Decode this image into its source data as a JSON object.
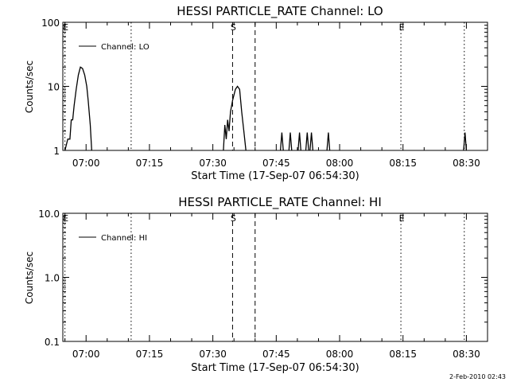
{
  "footer": {
    "date_stamp": "2-Feb-2010 02:43"
  },
  "chart_data": [
    {
      "type": "line",
      "title": "HESSI PARTICLE_RATE Channel: LO",
      "xlabel": "Start Time (17-Sep-07 06:54:30)",
      "ylabel": "Counts/sec",
      "yscale": "log",
      "ylim": [
        1,
        100
      ],
      "y_ticks": [
        "1",
        "10",
        "100"
      ],
      "xlim": [
        "06:54:30",
        "08:35:00"
      ],
      "x_ticks": [
        {
          "t": "07:00:00",
          "label": "07:00"
        },
        {
          "t": "07:15:00",
          "label": "07:15"
        },
        {
          "t": "07:30:00",
          "label": "07:30"
        },
        {
          "t": "07:45:00",
          "label": "07:45"
        },
        {
          "t": "08:00:00",
          "label": "08:00"
        },
        {
          "t": "08:15:00",
          "label": "08:15"
        },
        {
          "t": "08:30:00",
          "label": "08:30"
        }
      ],
      "legend": {
        "label": "Channel: LO",
        "placement": "top-left"
      },
      "markers": [
        {
          "t": "06:55:00",
          "style": "dotted",
          "label": "E"
        },
        {
          "t": "07:10:40",
          "style": "dotted",
          "label": ""
        },
        {
          "t": "07:34:40",
          "style": "dashed",
          "label": "S"
        },
        {
          "t": "07:40:00",
          "style": "dashed",
          "label": ""
        },
        {
          "t": "08:14:30",
          "style": "dotted",
          "label": "E"
        },
        {
          "t": "08:29:30",
          "style": "dotted",
          "label": ""
        }
      ],
      "series": [
        {
          "points": [
            [
              "06:55:00",
              1
            ],
            [
              "06:55:40",
              1.5
            ],
            [
              "06:56:10",
              1.5
            ],
            [
              "06:56:30",
              3
            ],
            [
              "06:56:50",
              3
            ],
            [
              "06:57:10",
              5
            ],
            [
              "06:57:40",
              9
            ],
            [
              "06:58:10",
              15
            ],
            [
              "06:58:40",
              20
            ],
            [
              "06:59:10",
              19
            ],
            [
              "06:59:40",
              15
            ],
            [
              "07:00:10",
              10
            ],
            [
              "07:00:30",
              6
            ],
            [
              "07:01:00",
              2.5
            ],
            [
              "07:01:20",
              1
            ]
          ]
        },
        {
          "points": [
            [
              "07:32:30",
              1
            ],
            [
              "07:32:50",
              2.5
            ],
            [
              "07:33:10",
              1.5
            ],
            [
              "07:33:30",
              3
            ],
            [
              "07:33:50",
              2
            ],
            [
              "07:34:10",
              4
            ],
            [
              "07:34:40",
              6
            ],
            [
              "07:35:20",
              9
            ],
            [
              "07:35:50",
              10
            ],
            [
              "07:36:20",
              9
            ],
            [
              "07:36:50",
              4
            ],
            [
              "07:37:20",
              2
            ],
            [
              "07:37:50",
              1
            ]
          ]
        },
        {
          "points": [
            [
              "07:46:00",
              1
            ],
            [
              "07:46:20",
              1.9
            ],
            [
              "07:46:40",
              1
            ]
          ]
        },
        {
          "points": [
            [
              "07:48:00",
              1
            ],
            [
              "07:48:20",
              1.9
            ],
            [
              "07:48:40",
              1
            ]
          ]
        },
        {
          "points": [
            [
              "07:50:10",
              1
            ],
            [
              "07:50:30",
              1.9
            ],
            [
              "07:50:50",
              1
            ]
          ]
        },
        {
          "points": [
            [
              "07:52:00",
              1
            ],
            [
              "07:52:20",
              1.9
            ],
            [
              "07:52:40",
              1
            ]
          ]
        },
        {
          "points": [
            [
              "07:53:00",
              1
            ],
            [
              "07:53:20",
              1.9
            ],
            [
              "07:53:40",
              1
            ]
          ]
        },
        {
          "points": [
            [
              "07:57:00",
              1
            ],
            [
              "07:57:20",
              1.9
            ],
            [
              "07:57:40",
              1
            ]
          ]
        },
        {
          "points": [
            [
              "08:29:20",
              1
            ],
            [
              "08:29:40",
              1.9
            ],
            [
              "08:30:00",
              1
            ]
          ]
        }
      ]
    },
    {
      "type": "line",
      "title": "HESSI PARTICLE_RATE Channel: HI",
      "xlabel": "Start Time (17-Sep-07 06:54:30)",
      "ylabel": "Counts/sec",
      "yscale": "log",
      "ylim": [
        0.1,
        10
      ],
      "y_ticks": [
        "0.1",
        "1.0",
        "10.0"
      ],
      "xlim": [
        "06:54:30",
        "08:35:00"
      ],
      "x_ticks": [
        {
          "t": "07:00:00",
          "label": "07:00"
        },
        {
          "t": "07:15:00",
          "label": "07:15"
        },
        {
          "t": "07:30:00",
          "label": "07:30"
        },
        {
          "t": "07:45:00",
          "label": "07:45"
        },
        {
          "t": "08:00:00",
          "label": "08:00"
        },
        {
          "t": "08:15:00",
          "label": "08:15"
        },
        {
          "t": "08:30:00",
          "label": "08:30"
        }
      ],
      "legend": {
        "label": "Channel: HI",
        "placement": "top-left"
      },
      "markers": [
        {
          "t": "06:55:00",
          "style": "dotted",
          "label": "E"
        },
        {
          "t": "07:10:40",
          "style": "dotted",
          "label": ""
        },
        {
          "t": "07:34:40",
          "style": "dashed",
          "label": "S"
        },
        {
          "t": "07:40:00",
          "style": "dashed",
          "label": ""
        },
        {
          "t": "08:14:30",
          "style": "dotted",
          "label": "E"
        },
        {
          "t": "08:29:30",
          "style": "dotted",
          "label": ""
        }
      ],
      "series": []
    }
  ]
}
